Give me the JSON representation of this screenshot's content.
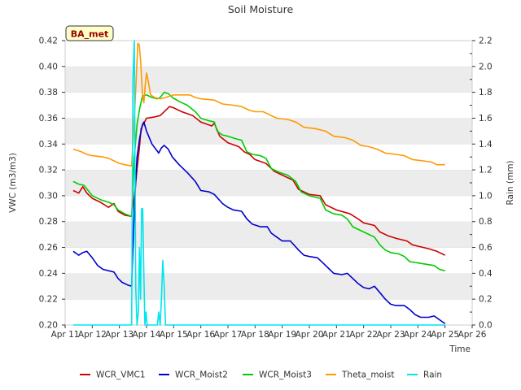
{
  "chart_data": {
    "type": "line",
    "title": "Soil Moisture",
    "xlabel": "Time",
    "ylabel_left": "VWC (m3/m3)",
    "ylabel_right": "Rain (mm)",
    "site_label": "BA_met",
    "x_range": [
      11,
      26
    ],
    "y_left_range": [
      0.2,
      0.42
    ],
    "y_right_range": [
      0.0,
      2.2
    ],
    "x_ticks": [
      {
        "value": 11,
        "label": "Apr 11"
      },
      {
        "value": 12,
        "label": "Apr 12"
      },
      {
        "value": 13,
        "label": "Apr 13"
      },
      {
        "value": 14,
        "label": "Apr 14"
      },
      {
        "value": 15,
        "label": "Apr 15"
      },
      {
        "value": 16,
        "label": "Apr 16"
      },
      {
        "value": 17,
        "label": "Apr 17"
      },
      {
        "value": 18,
        "label": "Apr 18"
      },
      {
        "value": 19,
        "label": "Apr 19"
      },
      {
        "value": 20,
        "label": "Apr 20"
      },
      {
        "value": 21,
        "label": "Apr 21"
      },
      {
        "value": 22,
        "label": "Apr 22"
      },
      {
        "value": 23,
        "label": "Apr 23"
      },
      {
        "value": 24,
        "label": "Apr 24"
      },
      {
        "value": 25,
        "label": "Apr 25"
      },
      {
        "value": 26,
        "label": "Apr 26"
      }
    ],
    "y_left_ticks": [
      "0.20",
      "0.22",
      "0.24",
      "0.26",
      "0.28",
      "0.30",
      "0.32",
      "0.34",
      "0.36",
      "0.38",
      "0.40",
      "0.42"
    ],
    "y_right_ticks": [
      "0.0",
      "0.2",
      "0.4",
      "0.6",
      "0.8",
      "1.0",
      "1.2",
      "1.4",
      "1.6",
      "1.8",
      "2.0",
      "2.2"
    ],
    "grid": "horizontal-bands",
    "legend_position": "bottom",
    "series": [
      {
        "name": "WCR_VMC1",
        "color": "#cc0000",
        "axis": "left",
        "points": [
          [
            11.3,
            0.304
          ],
          [
            11.5,
            0.302
          ],
          [
            11.65,
            0.307
          ],
          [
            11.8,
            0.302
          ],
          [
            12.0,
            0.298
          ],
          [
            12.3,
            0.295
          ],
          [
            12.6,
            0.291
          ],
          [
            12.8,
            0.294
          ],
          [
            12.95,
            0.288
          ],
          [
            13.2,
            0.285
          ],
          [
            13.45,
            0.284
          ],
          [
            13.55,
            0.3
          ],
          [
            13.65,
            0.32
          ],
          [
            13.75,
            0.34
          ],
          [
            13.8,
            0.352
          ],
          [
            13.9,
            0.356
          ],
          [
            14.0,
            0.36
          ],
          [
            14.3,
            0.361
          ],
          [
            14.5,
            0.362
          ],
          [
            14.7,
            0.366
          ],
          [
            14.85,
            0.369
          ],
          [
            15.0,
            0.368
          ],
          [
            15.3,
            0.365
          ],
          [
            15.7,
            0.362
          ],
          [
            16.0,
            0.357
          ],
          [
            16.4,
            0.354
          ],
          [
            16.5,
            0.356
          ],
          [
            16.7,
            0.346
          ],
          [
            17.0,
            0.341
          ],
          [
            17.4,
            0.338
          ],
          [
            17.6,
            0.334
          ],
          [
            17.8,
            0.332
          ],
          [
            18.0,
            0.328
          ],
          [
            18.4,
            0.325
          ],
          [
            18.7,
            0.319
          ],
          [
            19.0,
            0.316
          ],
          [
            19.4,
            0.312
          ],
          [
            19.6,
            0.305
          ],
          [
            20.0,
            0.301
          ],
          [
            20.4,
            0.3
          ],
          [
            20.6,
            0.293
          ],
          [
            21.0,
            0.289
          ],
          [
            21.5,
            0.286
          ],
          [
            21.8,
            0.282
          ],
          [
            22.0,
            0.279
          ],
          [
            22.4,
            0.277
          ],
          [
            22.6,
            0.272
          ],
          [
            22.9,
            0.269
          ],
          [
            23.2,
            0.267
          ],
          [
            23.6,
            0.265
          ],
          [
            23.8,
            0.262
          ],
          [
            24.0,
            0.261
          ],
          [
            24.4,
            0.259
          ],
          [
            24.7,
            0.257
          ],
          [
            25.0,
            0.254
          ]
        ]
      },
      {
        "name": "WCR_Moist2",
        "color": "#0000cc",
        "axis": "left",
        "points": [
          [
            11.3,
            0.257
          ],
          [
            11.5,
            0.254
          ],
          [
            11.65,
            0.256
          ],
          [
            11.8,
            0.257
          ],
          [
            12.0,
            0.252
          ],
          [
            12.2,
            0.246
          ],
          [
            12.4,
            0.243
          ],
          [
            12.6,
            0.242
          ],
          [
            12.8,
            0.241
          ],
          [
            12.95,
            0.236
          ],
          [
            13.1,
            0.233
          ],
          [
            13.3,
            0.231
          ],
          [
            13.45,
            0.23
          ],
          [
            13.55,
            0.29
          ],
          [
            13.65,
            0.33
          ],
          [
            13.75,
            0.345
          ],
          [
            13.85,
            0.355
          ],
          [
            13.9,
            0.357
          ],
          [
            14.0,
            0.35
          ],
          [
            14.2,
            0.34
          ],
          [
            14.45,
            0.333
          ],
          [
            14.55,
            0.337
          ],
          [
            14.65,
            0.339
          ],
          [
            14.8,
            0.336
          ],
          [
            14.95,
            0.33
          ],
          [
            15.2,
            0.324
          ],
          [
            15.5,
            0.318
          ],
          [
            15.8,
            0.311
          ],
          [
            16.0,
            0.304
          ],
          [
            16.3,
            0.303
          ],
          [
            16.5,
            0.301
          ],
          [
            16.8,
            0.294
          ],
          [
            17.0,
            0.291
          ],
          [
            17.2,
            0.289
          ],
          [
            17.5,
            0.288
          ],
          [
            17.7,
            0.282
          ],
          [
            17.9,
            0.278
          ],
          [
            18.2,
            0.276
          ],
          [
            18.45,
            0.276
          ],
          [
            18.6,
            0.271
          ],
          [
            18.8,
            0.268
          ],
          [
            19.0,
            0.265
          ],
          [
            19.3,
            0.265
          ],
          [
            19.6,
            0.258
          ],
          [
            19.8,
            0.254
          ],
          [
            20.0,
            0.253
          ],
          [
            20.3,
            0.252
          ],
          [
            20.5,
            0.248
          ],
          [
            20.7,
            0.244
          ],
          [
            20.9,
            0.24
          ],
          [
            21.2,
            0.239
          ],
          [
            21.4,
            0.24
          ],
          [
            21.6,
            0.236
          ],
          [
            21.8,
            0.232
          ],
          [
            22.0,
            0.229
          ],
          [
            22.2,
            0.228
          ],
          [
            22.4,
            0.23
          ],
          [
            22.6,
            0.225
          ],
          [
            22.8,
            0.22
          ],
          [
            23.0,
            0.216
          ],
          [
            23.2,
            0.215
          ],
          [
            23.5,
            0.215
          ],
          [
            23.7,
            0.212
          ],
          [
            23.9,
            0.208
          ],
          [
            24.1,
            0.206
          ],
          [
            24.4,
            0.206
          ],
          [
            24.6,
            0.207
          ],
          [
            24.8,
            0.204
          ],
          [
            25.0,
            0.201
          ]
        ]
      },
      {
        "name": "WCR_Moist3",
        "color": "#00cc00",
        "axis": "left",
        "points": [
          [
            11.3,
            0.311
          ],
          [
            11.5,
            0.309
          ],
          [
            11.7,
            0.308
          ],
          [
            11.85,
            0.304
          ],
          [
            12.0,
            0.3
          ],
          [
            12.3,
            0.297
          ],
          [
            12.6,
            0.295
          ],
          [
            12.8,
            0.293
          ],
          [
            12.95,
            0.289
          ],
          [
            13.2,
            0.286
          ],
          [
            13.45,
            0.284
          ],
          [
            13.55,
            0.33
          ],
          [
            13.65,
            0.355
          ],
          [
            13.75,
            0.368
          ],
          [
            13.85,
            0.377
          ],
          [
            14.0,
            0.378
          ],
          [
            14.2,
            0.376
          ],
          [
            14.4,
            0.375
          ],
          [
            14.5,
            0.376
          ],
          [
            14.65,
            0.38
          ],
          [
            14.8,
            0.379
          ],
          [
            14.95,
            0.376
          ],
          [
            15.2,
            0.373
          ],
          [
            15.5,
            0.37
          ],
          [
            15.8,
            0.365
          ],
          [
            16.0,
            0.36
          ],
          [
            16.3,
            0.358
          ],
          [
            16.5,
            0.357
          ],
          [
            16.6,
            0.35
          ],
          [
            16.8,
            0.347
          ],
          [
            17.0,
            0.346
          ],
          [
            17.3,
            0.344
          ],
          [
            17.5,
            0.343
          ],
          [
            17.7,
            0.334
          ],
          [
            17.9,
            0.332
          ],
          [
            18.2,
            0.331
          ],
          [
            18.4,
            0.329
          ],
          [
            18.6,
            0.321
          ],
          [
            18.9,
            0.318
          ],
          [
            19.2,
            0.316
          ],
          [
            19.5,
            0.311
          ],
          [
            19.7,
            0.303
          ],
          [
            20.0,
            0.3
          ],
          [
            20.4,
            0.298
          ],
          [
            20.6,
            0.289
          ],
          [
            20.9,
            0.286
          ],
          [
            21.2,
            0.285
          ],
          [
            21.4,
            0.282
          ],
          [
            21.6,
            0.276
          ],
          [
            21.9,
            0.273
          ],
          [
            22.2,
            0.27
          ],
          [
            22.4,
            0.268
          ],
          [
            22.6,
            0.262
          ],
          [
            22.8,
            0.258
          ],
          [
            23.0,
            0.256
          ],
          [
            23.3,
            0.255
          ],
          [
            23.5,
            0.253
          ],
          [
            23.7,
            0.249
          ],
          [
            24.0,
            0.248
          ],
          [
            24.3,
            0.247
          ],
          [
            24.6,
            0.246
          ],
          [
            24.8,
            0.243
          ],
          [
            25.0,
            0.242
          ]
        ]
      },
      {
        "name": "Theta_moist",
        "color": "#ff9900",
        "axis": "left",
        "points": [
          [
            11.3,
            0.336
          ],
          [
            11.6,
            0.334
          ],
          [
            11.8,
            0.332
          ],
          [
            12.0,
            0.331
          ],
          [
            12.4,
            0.33
          ],
          [
            12.6,
            0.329
          ],
          [
            12.8,
            0.327
          ],
          [
            13.0,
            0.325
          ],
          [
            13.2,
            0.324
          ],
          [
            13.45,
            0.323
          ],
          [
            13.55,
            0.36
          ],
          [
            13.62,
            0.39
          ],
          [
            13.68,
            0.418
          ],
          [
            13.73,
            0.417
          ],
          [
            13.78,
            0.405
          ],
          [
            13.85,
            0.378
          ],
          [
            13.9,
            0.372
          ],
          [
            13.95,
            0.385
          ],
          [
            14.0,
            0.395
          ],
          [
            14.05,
            0.39
          ],
          [
            14.15,
            0.378
          ],
          [
            14.3,
            0.376
          ],
          [
            14.5,
            0.375
          ],
          [
            14.7,
            0.376
          ],
          [
            15.0,
            0.378
          ],
          [
            15.3,
            0.378
          ],
          [
            15.6,
            0.378
          ],
          [
            15.8,
            0.376
          ],
          [
            16.0,
            0.375
          ],
          [
            16.5,
            0.374
          ],
          [
            16.8,
            0.371
          ],
          [
            17.2,
            0.37
          ],
          [
            17.5,
            0.369
          ],
          [
            17.8,
            0.366
          ],
          [
            18.0,
            0.365
          ],
          [
            18.3,
            0.365
          ],
          [
            18.5,
            0.363
          ],
          [
            18.8,
            0.36
          ],
          [
            19.2,
            0.359
          ],
          [
            19.5,
            0.357
          ],
          [
            19.8,
            0.353
          ],
          [
            20.2,
            0.352
          ],
          [
            20.6,
            0.35
          ],
          [
            20.9,
            0.346
          ],
          [
            21.3,
            0.345
          ],
          [
            21.6,
            0.343
          ],
          [
            21.9,
            0.339
          ],
          [
            22.2,
            0.338
          ],
          [
            22.5,
            0.336
          ],
          [
            22.8,
            0.333
          ],
          [
            23.2,
            0.332
          ],
          [
            23.5,
            0.331
          ],
          [
            23.8,
            0.328
          ],
          [
            24.2,
            0.327
          ],
          [
            24.5,
            0.326
          ],
          [
            24.7,
            0.324
          ],
          [
            25.0,
            0.324
          ]
        ]
      },
      {
        "name": "Rain",
        "color": "#00e5ee",
        "axis": "right",
        "points": [
          [
            11.3,
            0.0
          ],
          [
            13.4,
            0.0
          ],
          [
            13.45,
            0.0
          ],
          [
            13.5,
            1.9
          ],
          [
            13.55,
            2.2
          ],
          [
            13.6,
            0.3
          ],
          [
            13.65,
            0.0
          ],
          [
            13.7,
            0.1
          ],
          [
            13.74,
            0.6
          ],
          [
            13.78,
            0.2
          ],
          [
            13.82,
            0.9
          ],
          [
            13.86,
            0.9
          ],
          [
            13.9,
            0.4
          ],
          [
            13.94,
            0.0
          ],
          [
            13.98,
            0.1
          ],
          [
            14.02,
            0.0
          ],
          [
            14.4,
            0.0
          ],
          [
            14.45,
            0.1
          ],
          [
            14.5,
            0.0
          ],
          [
            14.55,
            0.2
          ],
          [
            14.6,
            0.5
          ],
          [
            14.65,
            0.3
          ],
          [
            14.7,
            0.0
          ],
          [
            25.0,
            0.0
          ]
        ]
      }
    ]
  }
}
